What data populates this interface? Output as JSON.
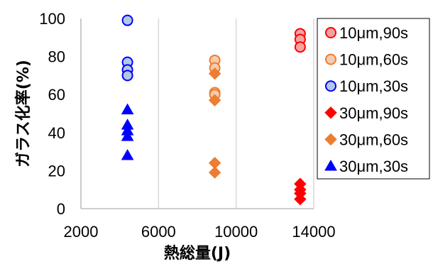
{
  "chart_data": {
    "type": "scatter",
    "xlabel": "熱総量(J)",
    "ylabel": "ガラス化率(%)",
    "xlim": [
      2000,
      14000
    ],
    "ylim": [
      0,
      100
    ],
    "xticks": [
      "2000",
      "6000",
      "10000",
      "14000"
    ],
    "yticks": [
      "0",
      "20",
      "40",
      "60",
      "80",
      "100"
    ],
    "grid": "vertical",
    "legend_position": "right",
    "series": [
      {
        "name": "10μm,90s",
        "marker": "circle",
        "color": "#ff0000",
        "fill": "#f4a3a3",
        "points": [
          {
            "x": 13300,
            "y": 92
          },
          {
            "x": 13300,
            "y": 89
          },
          {
            "x": 13300,
            "y": 85
          }
        ]
      },
      {
        "name": "10μm,60s",
        "marker": "circle",
        "color": "#ed7d31",
        "fill": "#f8cbad",
        "points": [
          {
            "x": 8900,
            "y": 78
          },
          {
            "x": 8900,
            "y": 74
          },
          {
            "x": 8900,
            "y": 61
          },
          {
            "x": 8900,
            "y": 60
          }
        ]
      },
      {
        "name": "10μm,30s",
        "marker": "circle",
        "color": "#0000ff",
        "fill": "#b4c7e7",
        "points": [
          {
            "x": 4400,
            "y": 99
          },
          {
            "x": 4400,
            "y": 77
          },
          {
            "x": 4400,
            "y": 73
          },
          {
            "x": 4400,
            "y": 70
          }
        ]
      },
      {
        "name": "30μm,90s",
        "marker": "diamond",
        "color": "#ff0000",
        "fill": "#ff0000",
        "points": [
          {
            "x": 13300,
            "y": 13
          },
          {
            "x": 13300,
            "y": 10
          },
          {
            "x": 13300,
            "y": 8
          },
          {
            "x": 13300,
            "y": 5
          }
        ]
      },
      {
        "name": "30μm,60s",
        "marker": "diamond",
        "color": "#ed7d31",
        "fill": "#ed7d31",
        "points": [
          {
            "x": 8900,
            "y": 71
          },
          {
            "x": 8900,
            "y": 57
          },
          {
            "x": 8900,
            "y": 24
          },
          {
            "x": 8900,
            "y": 19
          }
        ]
      },
      {
        "name": "30μm,30s",
        "marker": "triangle",
        "color": "#0000ff",
        "fill": "#0000ff",
        "points": [
          {
            "x": 4400,
            "y": 52
          },
          {
            "x": 4400,
            "y": 44
          },
          {
            "x": 4400,
            "y": 41
          },
          {
            "x": 4400,
            "y": 38
          },
          {
            "x": 4400,
            "y": 28
          }
        ]
      }
    ]
  }
}
